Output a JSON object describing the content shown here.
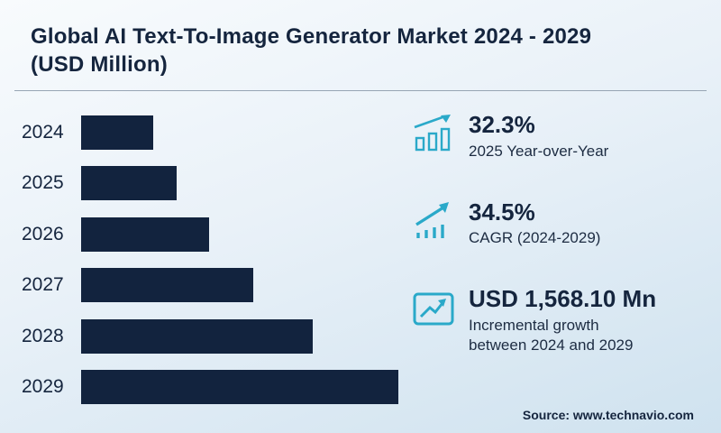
{
  "title": "Global AI Text-To-Image Generator Market 2024 - 2029 (USD Million)",
  "chart_data": {
    "type": "bar",
    "orientation": "horizontal",
    "title": "Global AI Text-To-Image Generator Market 2024 - 2029 (USD Million)",
    "categories": [
      "2024",
      "2025",
      "2026",
      "2027",
      "2028",
      "2029"
    ],
    "values": [
      461,
      610,
      820,
      1103,
      1483,
      2029
    ],
    "values_estimated_from_bar_lengths": true,
    "xlabel": "",
    "ylabel": "",
    "grid": false,
    "legend": false,
    "bar_color": "#12233e"
  },
  "stats": [
    {
      "icon": "yoy-growth-bars-icon",
      "value": "32.3%",
      "label": "2025 Year-over-Year"
    },
    {
      "icon": "cagr-arrow-icon",
      "value": "34.5%",
      "label": "CAGR (2024-2029)"
    },
    {
      "icon": "incremental-growth-box-icon",
      "value": "USD 1,568.10 Mn",
      "label": "Incremental growth between 2024 and 2029"
    }
  ],
  "source": "Source: www.technavio.com",
  "colors": {
    "accent": "#2aa9c9",
    "bar": "#12233e",
    "text": "#15253e",
    "background_start": "#f8fbfd",
    "background_end": "#cfe2ef"
  }
}
